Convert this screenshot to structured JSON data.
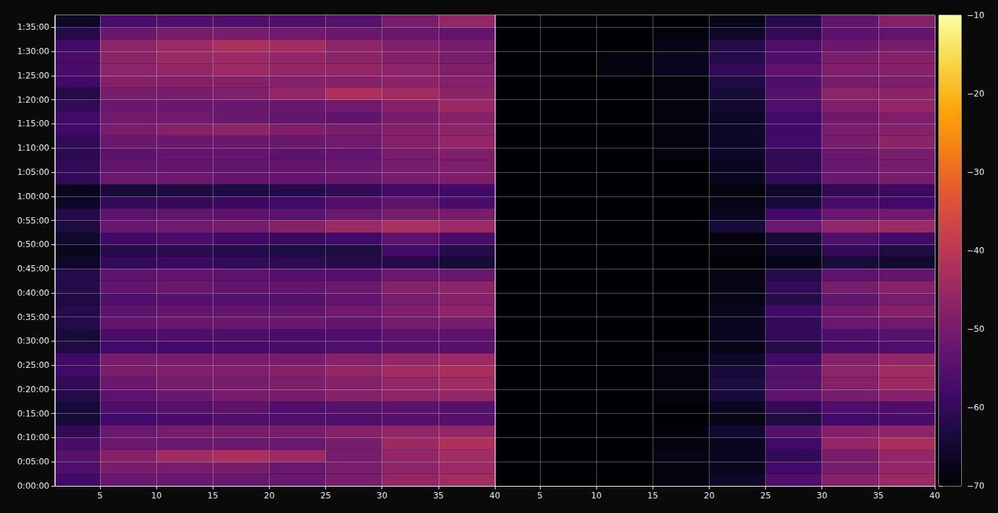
{
  "chart_data": [
    {
      "type": "heatmap",
      "grid": true,
      "xlim": [
        1,
        40
      ],
      "xticks": [
        5,
        10,
        15,
        20,
        25,
        30,
        35,
        40
      ],
      "ylim": [
        0,
        5850
      ],
      "yticks": [
        {
          "value": 0,
          "label": "0:00:00"
        },
        {
          "value": 300,
          "label": "0:05:00"
        },
        {
          "value": 600,
          "label": "0:10:00"
        },
        {
          "value": 900,
          "label": "0:15:00"
        },
        {
          "value": 1200,
          "label": "0:20:00"
        },
        {
          "value": 1500,
          "label": "0:25:00"
        },
        {
          "value": 1800,
          "label": "0:30:00"
        },
        {
          "value": 2100,
          "label": "0:35:00"
        },
        {
          "value": 2400,
          "label": "0:40:00"
        },
        {
          "value": 2700,
          "label": "0:45:00"
        },
        {
          "value": 3000,
          "label": "0:50:00"
        },
        {
          "value": 3300,
          "label": "0:55:00"
        },
        {
          "value": 3600,
          "label": "1:00:00"
        },
        {
          "value": 3900,
          "label": "1:05:00"
        },
        {
          "value": 4200,
          "label": "1:10:00"
        },
        {
          "value": 4500,
          "label": "1:15:00"
        },
        {
          "value": 4800,
          "label": "1:20:00"
        },
        {
          "value": 5100,
          "label": "1:25:00"
        },
        {
          "value": 5400,
          "label": "1:30:00"
        },
        {
          "value": 5700,
          "label": "1:35:00"
        }
      ],
      "x": [
        2.5,
        7.5,
        12.5,
        17.5,
        22.5,
        27.5,
        32.5,
        37.5
      ],
      "y": [
        75,
        225,
        375,
        525,
        675,
        825,
        975,
        1125,
        1275,
        1425,
        1575,
        1725,
        1875,
        2025,
        2175,
        2325,
        2475,
        2625,
        2775,
        2925,
        3075,
        3225,
        3375,
        3525,
        3675,
        3825,
        3975,
        4125,
        4275,
        4425,
        4575,
        4725,
        4875,
        5025,
        5175,
        5325,
        5475,
        5625,
        5775
      ],
      "values": [
        [
          -58,
          -52,
          -52,
          -52,
          -52,
          -50,
          -46,
          -44
        ],
        [
          -56,
          -50,
          -50,
          -50,
          -52,
          -50,
          -47,
          -45
        ],
        [
          -55,
          -48,
          -44,
          -43,
          -45,
          -50,
          -46,
          -44
        ],
        [
          -57,
          -52,
          -52,
          -52,
          -52,
          -50,
          -45,
          -42
        ],
        [
          -60,
          -52,
          -50,
          -50,
          -50,
          -48,
          -46,
          -46
        ],
        [
          -64,
          -58,
          -57,
          -56,
          -56,
          -56,
          -55,
          -55
        ],
        [
          -64,
          -56,
          -55,
          -54,
          -56,
          -55,
          -54,
          -55
        ],
        [
          -62,
          -54,
          -52,
          -50,
          -50,
          -48,
          -47,
          -46
        ],
        [
          -60,
          -52,
          -50,
          -50,
          -49,
          -48,
          -46,
          -44
        ],
        [
          -58,
          -50,
          -49,
          -49,
          -48,
          -46,
          -44,
          -43
        ],
        [
          -58,
          -50,
          -50,
          -50,
          -50,
          -48,
          -46,
          -45
        ],
        [
          -63,
          -58,
          -58,
          -57,
          -57,
          -56,
          -55,
          -55
        ],
        [
          -64,
          -57,
          -56,
          -56,
          -57,
          -56,
          -54,
          -54
        ],
        [
          -62,
          -53,
          -52,
          -52,
          -52,
          -53,
          -50,
          -50
        ],
        [
          -62,
          -54,
          -53,
          -53,
          -53,
          -51,
          -49,
          -47
        ],
        [
          -63,
          -56,
          -55,
          -55,
          -55,
          -53,
          -50,
          -48
        ],
        [
          -62,
          -53,
          -52,
          -53,
          -53,
          -52,
          -48,
          -47
        ],
        [
          -62,
          -54,
          -53,
          -54,
          -55,
          -55,
          -52,
          -52
        ],
        [
          -66,
          -60,
          -59,
          -60,
          -61,
          -62,
          -62,
          -64
        ],
        [
          -67,
          -62,
          -61,
          -62,
          -63,
          -63,
          -58,
          -62
        ],
        [
          -65,
          -58,
          -57,
          -58,
          -59,
          -58,
          -54,
          -57
        ],
        [
          -63,
          -52,
          -51,
          -50,
          -48,
          -45,
          -43,
          -45
        ],
        [
          -62,
          -54,
          -53,
          -54,
          -54,
          -52,
          -50,
          -50
        ],
        [
          -66,
          -60,
          -60,
          -59,
          -58,
          -56,
          -54,
          -57
        ],
        [
          -67,
          -64,
          -63,
          -63,
          -62,
          -60,
          -58,
          -58
        ],
        [
          -60,
          -52,
          -52,
          -53,
          -53,
          -52,
          -50,
          -49
        ],
        [
          -60,
          -53,
          -53,
          -53,
          -53,
          -52,
          -50,
          -49
        ],
        [
          -61,
          -54,
          -53,
          -53,
          -54,
          -53,
          -50,
          -49
        ],
        [
          -60,
          -52,
          -52,
          -52,
          -52,
          -51,
          -48,
          -46
        ],
        [
          -58,
          -50,
          -48,
          -47,
          -49,
          -50,
          -48,
          -47
        ],
        [
          -58,
          -51,
          -51,
          -52,
          -53,
          -53,
          -50,
          -48
        ],
        [
          -60,
          -52,
          -52,
          -52,
          -52,
          -51,
          -48,
          -45
        ],
        [
          -62,
          -50,
          -50,
          -49,
          -46,
          -42,
          -44,
          -47
        ],
        [
          -58,
          -48,
          -48,
          -48,
          -48,
          -48,
          -47,
          -48
        ],
        [
          -57,
          -47,
          -46,
          -45,
          -46,
          -46,
          -47,
          -49
        ],
        [
          -57,
          -47,
          -45,
          -45,
          -46,
          -47,
          -48,
          -50
        ],
        [
          -58,
          -47,
          -45,
          -43,
          -44,
          -47,
          -49,
          -50
        ],
        [
          -62,
          -52,
          -50,
          -50,
          -51,
          -52,
          -52,
          -53
        ],
        [
          -66,
          -57,
          -56,
          -56,
          -56,
          -55,
          -50,
          -46
        ]
      ]
    },
    {
      "type": "heatmap",
      "grid": true,
      "tick_labels": "x",
      "xlim": [
        1,
        40
      ],
      "xticks": [
        5,
        10,
        15,
        20,
        25,
        30,
        35,
        40
      ],
      "ylim": [
        0,
        5850
      ],
      "yticks": [
        0,
        300,
        600,
        900,
        1200,
        1500,
        1800,
        2100,
        2400,
        2700,
        3000,
        3300,
        3600,
        3900,
        4200,
        4500,
        4800,
        5100,
        5400,
        5700
      ],
      "x": [
        2.5,
        7.5,
        12.5,
        17.5,
        22.5,
        27.5,
        32.5,
        37.5
      ],
      "y": [
        75,
        225,
        375,
        525,
        675,
        825,
        975,
        1125,
        1275,
        1425,
        1575,
        1725,
        1875,
        2025,
        2175,
        2325,
        2475,
        2625,
        2775,
        2925,
        3075,
        3225,
        3375,
        3525,
        3675,
        3825,
        3975,
        4125,
        4275,
        4425,
        4575,
        4725,
        4875,
        5025,
        5175,
        5325,
        5475,
        5625,
        5775
      ],
      "values": [
        [
          -70,
          -70,
          -70,
          -69,
          -66,
          -56,
          -48,
          -45
        ],
        [
          -70,
          -70,
          -70,
          -69,
          -67,
          -58,
          -50,
          -46
        ],
        [
          -70,
          -70,
          -70,
          -68,
          -67,
          -60,
          -50,
          -46
        ],
        [
          -70,
          -70,
          -70,
          -69,
          -67,
          -58,
          -46,
          -43
        ],
        [
          -70,
          -70,
          -70,
          -69,
          -65,
          -55,
          -48,
          -47
        ],
        [
          -70,
          -70,
          -70,
          -70,
          -68,
          -63,
          -58,
          -57
        ],
        [
          -70,
          -70,
          -70,
          -70,
          -67,
          -60,
          -56,
          -56
        ],
        [
          -70,
          -70,
          -70,
          -69,
          -64,
          -54,
          -50,
          -48
        ],
        [
          -70,
          -70,
          -70,
          -69,
          -63,
          -55,
          -48,
          -45
        ],
        [
          -70,
          -70,
          -70,
          -69,
          -64,
          -55,
          -47,
          -44
        ],
        [
          -70,
          -70,
          -70,
          -69,
          -66,
          -58,
          -48,
          -46
        ],
        [
          -70,
          -70,
          -70,
          -70,
          -68,
          -62,
          -57,
          -56
        ],
        [
          -70,
          -70,
          -70,
          -70,
          -67,
          -60,
          -56,
          -55
        ],
        [
          -70,
          -70,
          -70,
          -70,
          -67,
          -60,
          -52,
          -51
        ],
        [
          -70,
          -70,
          -70,
          -70,
          -67,
          -58,
          -51,
          -48
        ],
        [
          -70,
          -70,
          -70,
          -70,
          -68,
          -62,
          -53,
          -50
        ],
        [
          -70,
          -70,
          -70,
          -70,
          -68,
          -60,
          -50,
          -48
        ],
        [
          -70,
          -70,
          -70,
          -70,
          -68,
          -62,
          -54,
          -53
        ],
        [
          -70,
          -70,
          -70,
          -70,
          -70,
          -68,
          -64,
          -65
        ],
        [
          -70,
          -70,
          -70,
          -70,
          -69,
          -66,
          -60,
          -63
        ],
        [
          -70,
          -70,
          -70,
          -70,
          -69,
          -64,
          -56,
          -58
        ],
        [
          -70,
          -70,
          -70,
          -70,
          -64,
          -52,
          -46,
          -45
        ],
        [
          -70,
          -70,
          -70,
          -70,
          -67,
          -58,
          -52,
          -51
        ],
        [
          -70,
          -70,
          -70,
          -70,
          -68,
          -64,
          -57,
          -58
        ],
        [
          -70,
          -70,
          -70,
          -70,
          -69,
          -66,
          -60,
          -59
        ],
        [
          -70,
          -70,
          -70,
          -70,
          -67,
          -60,
          -52,
          -50
        ],
        [
          -70,
          -70,
          -70,
          -70,
          -67,
          -60,
          -52,
          -50
        ],
        [
          -70,
          -70,
          -70,
          -69,
          -66,
          -60,
          -52,
          -50
        ],
        [
          -70,
          -70,
          -70,
          -69,
          -66,
          -58,
          -50,
          -47
        ],
        [
          -70,
          -70,
          -70,
          -69,
          -66,
          -58,
          -50,
          -48
        ],
        [
          -70,
          -70,
          -70,
          -69,
          -66,
          -58,
          -51,
          -49
        ],
        [
          -70,
          -70,
          -70,
          -69,
          -65,
          -56,
          -49,
          -46
        ],
        [
          -70,
          -70,
          -70,
          -69,
          -64,
          -55,
          -47,
          -47
        ],
        [
          -70,
          -70,
          -70,
          -69,
          -63,
          -56,
          -50,
          -49
        ],
        [
          -70,
          -70,
          -69,
          -67,
          -60,
          -54,
          -49,
          -48
        ],
        [
          -70,
          -70,
          -69,
          -67,
          -62,
          -56,
          -50,
          -48
        ],
        [
          -70,
          -70,
          -70,
          -68,
          -62,
          -56,
          -52,
          -50
        ],
        [
          -70,
          -70,
          -70,
          -69,
          -66,
          -60,
          -54,
          -53
        ],
        [
          -70,
          -70,
          -70,
          -70,
          -68,
          -62,
          -53,
          -48
        ]
      ],
      "colorbar": {
        "range": [
          -70,
          -10
        ],
        "ticks": [
          {
            "value": -70,
            "label": "−70"
          },
          {
            "value": -60,
            "label": "−60"
          },
          {
            "value": -50,
            "label": "−50"
          },
          {
            "value": -40,
            "label": "−40"
          },
          {
            "value": -30,
            "label": "−30"
          },
          {
            "value": -20,
            "label": "−20"
          },
          {
            "value": -10,
            "label": "−10"
          }
        ]
      }
    }
  ]
}
